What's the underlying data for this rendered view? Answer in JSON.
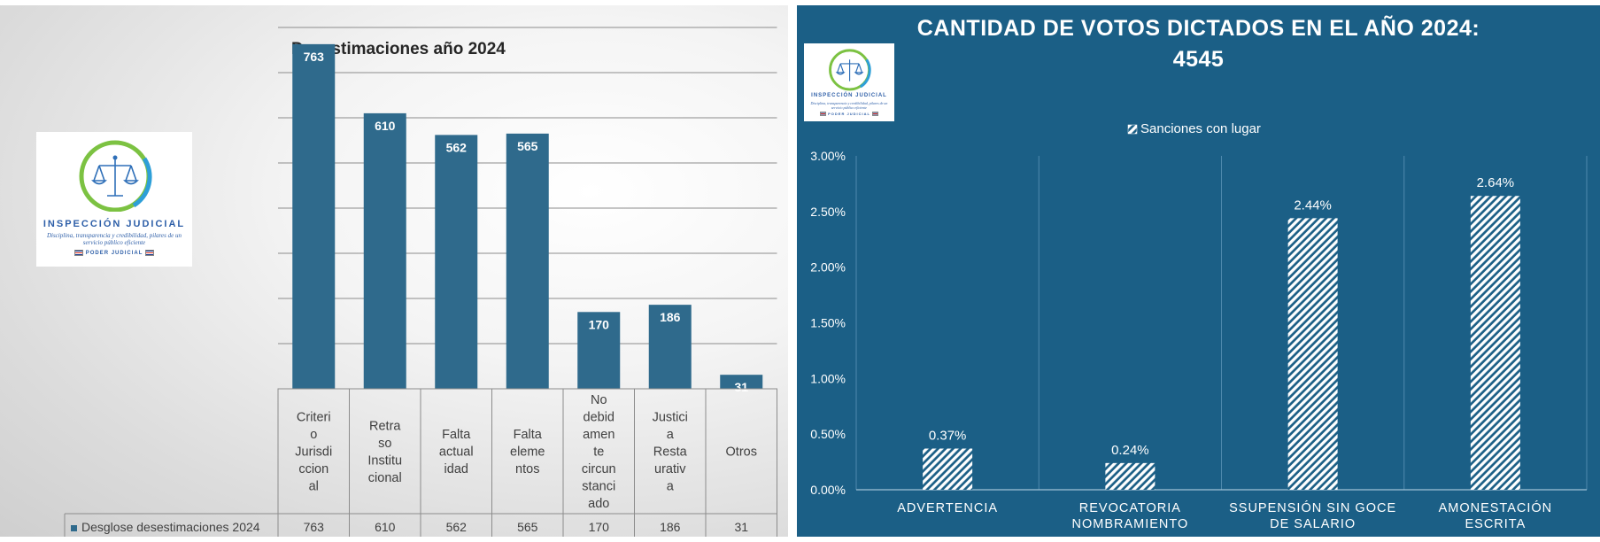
{
  "left_panel": {
    "logo": {
      "title": "INSPECCIÓN JUDICIAL",
      "tagline": "Disciplina, transparencia y credibilidad, pilares de un servicio público eficiente",
      "org": "PODER JUDICIAL",
      "icon": "scales-of-justice-icon"
    }
  },
  "right_panel": {
    "title_line1": "CANTIDAD DE VOTOS DICTADOS EN EL AÑO 2024:",
    "title_line2": "4545",
    "logo": {
      "title": "INSPECCIÓN JUDICIAL",
      "tagline": "Disciplina, transparencia y credibilidad, pilares de un servicio público eficiente",
      "org": "PODER JUDICIAL",
      "icon": "scales-of-justice-icon"
    }
  },
  "chart_data": [
    {
      "type": "bar",
      "title": "Desestimaciones  año 2024",
      "categories": [
        "Criterio Jurisdiccional",
        "Retraso Institucional",
        "Falta actualidad",
        "Falta elementos",
        "No debidamente circunstanciado",
        "Justicia Restaurativa",
        "Otros"
      ],
      "category_lines": [
        [
          "Criteri",
          "o",
          "Jurisdi",
          "ccion",
          "al"
        ],
        [
          "Retra",
          "so",
          "Institu",
          "cional"
        ],
        [
          "Falta",
          "actual",
          "idad"
        ],
        [
          "Falta",
          "eleme",
          "ntos"
        ],
        [
          "No",
          "debid",
          "amen",
          "te",
          "circun",
          "stanci",
          "ado"
        ],
        [
          "Justici",
          "a",
          "Resta",
          "urativ",
          "a"
        ],
        [
          "Otros"
        ]
      ],
      "series": [
        {
          "name": "Desglose desestimaciones 2024",
          "values": [
            763,
            610,
            562,
            565,
            170,
            186,
            31
          ],
          "color": "#2f6a8c"
        }
      ],
      "value_labels": [
        "763",
        "610",
        "562",
        "565",
        "170",
        "186",
        "31"
      ],
      "ylim": [
        0,
        800
      ],
      "gridlines": true,
      "data_table": true,
      "xlabel": "",
      "ylabel": ""
    },
    {
      "type": "bar",
      "legend": "top",
      "categories": [
        "ADVERTENCIA",
        "REVOCATORIA NOMBRAMIENTO",
        "SSUPENSIÓN SIN GOCE DE SALARIO",
        "AMONESTACIÓN ESCRITA"
      ],
      "category_lines": [
        [
          "ADVERTENCIA"
        ],
        [
          "REVOCATORIA",
          "NOMBRAMIENTO"
        ],
        [
          "SSUPENSIÓN SIN GOCE",
          "DE SALARIO"
        ],
        [
          "AMONESTACIÓN",
          "ESCRITA"
        ]
      ],
      "series": [
        {
          "name": "Sanciones con lugar",
          "values": [
            0.0037,
            0.0024,
            0.0244,
            0.0264
          ],
          "fill": "hatched-white"
        }
      ],
      "value_labels": [
        "0.37%",
        "0.24%",
        "2.44%",
        "2.64%"
      ],
      "ylim": [
        0,
        0.03
      ],
      "yticks": [
        "0.00%",
        "0.50%",
        "1.00%",
        "1.50%",
        "2.00%",
        "2.50%",
        "3.00%"
      ],
      "gridlines": false,
      "xlabel": "",
      "ylabel": ""
    }
  ]
}
